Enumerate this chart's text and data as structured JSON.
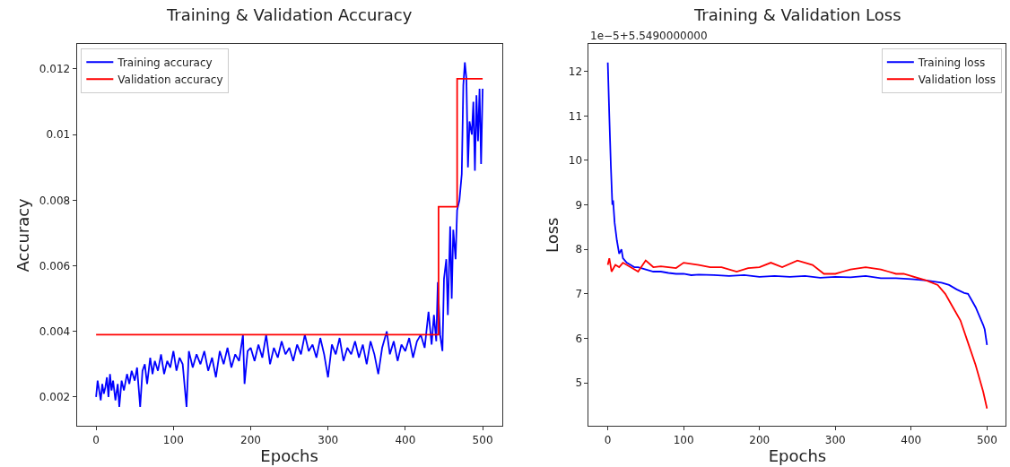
{
  "chart_data": [
    {
      "type": "line",
      "title": "Training & Validation Accuracy",
      "xlabel": "Epochs",
      "ylabel": "Accuracy",
      "xlim": [
        -25,
        525
      ],
      "xticks": [
        0,
        100,
        200,
        300,
        400,
        500
      ],
      "ylim": [
        0.00112,
        0.01275
      ],
      "yticks": [
        0.002,
        0.004,
        0.006,
        0.008,
        0.01,
        0.012
      ],
      "legend": "top left",
      "series": [
        {
          "name": "Training accuracy",
          "color": "#0000ff",
          "x": [
            0,
            2,
            4,
            6,
            8,
            10,
            12,
            14,
            16,
            18,
            20,
            22,
            25,
            28,
            30,
            33,
            36,
            40,
            43,
            46,
            50,
            53,
            57,
            60,
            63,
            66,
            70,
            73,
            76,
            80,
            84,
            88,
            92,
            96,
            100,
            104,
            108,
            112,
            117,
            120,
            125,
            130,
            135,
            140,
            145,
            150,
            155,
            160,
            165,
            170,
            175,
            180,
            185,
            190,
            192,
            196,
            200,
            205,
            210,
            215,
            220,
            225,
            230,
            235,
            240,
            245,
            250,
            255,
            260,
            265,
            270,
            275,
            280,
            285,
            290,
            295,
            300,
            305,
            310,
            315,
            320,
            325,
            330,
            335,
            340,
            345,
            350,
            355,
            360,
            365,
            370,
            376,
            380,
            385,
            390,
            395,
            400,
            405,
            410,
            415,
            420,
            425,
            430,
            434,
            437,
            440,
            442,
            445,
            448,
            450,
            453,
            455,
            458,
            460,
            462,
            465,
            467,
            470,
            473,
            475,
            477,
            479,
            481,
            483,
            486,
            488,
            490,
            492,
            494,
            496,
            498,
            500
          ],
          "values": [
            0.002,
            0.0025,
            0.0022,
            0.0019,
            0.0024,
            0.0021,
            0.0023,
            0.0026,
            0.002,
            0.0027,
            0.0022,
            0.0025,
            0.0019,
            0.0024,
            0.0017,
            0.0025,
            0.0022,
            0.0027,
            0.0024,
            0.0028,
            0.0025,
            0.0029,
            0.0017,
            0.0028,
            0.003,
            0.0024,
            0.0032,
            0.0027,
            0.0031,
            0.0028,
            0.0033,
            0.0027,
            0.0031,
            0.0029,
            0.0034,
            0.0028,
            0.0032,
            0.003,
            0.0017,
            0.0034,
            0.0029,
            0.0033,
            0.003,
            0.0034,
            0.0028,
            0.0032,
            0.0026,
            0.0034,
            0.003,
            0.0035,
            0.0029,
            0.0033,
            0.0031,
            0.0039,
            0.0024,
            0.0034,
            0.0035,
            0.0031,
            0.0036,
            0.0032,
            0.0039,
            0.003,
            0.0035,
            0.0032,
            0.0037,
            0.0033,
            0.0035,
            0.0031,
            0.0036,
            0.0033,
            0.0039,
            0.0034,
            0.0036,
            0.0032,
            0.0038,
            0.0033,
            0.0026,
            0.0036,
            0.0033,
            0.0038,
            0.0031,
            0.0035,
            0.0033,
            0.0037,
            0.0032,
            0.0036,
            0.003,
            0.0037,
            0.0033,
            0.0027,
            0.0035,
            0.004,
            0.0033,
            0.0037,
            0.0031,
            0.0036,
            0.0034,
            0.0038,
            0.0032,
            0.0037,
            0.0039,
            0.0035,
            0.0046,
            0.0036,
            0.0045,
            0.0037,
            0.0055,
            0.0039,
            0.0034,
            0.0056,
            0.0062,
            0.0045,
            0.0072,
            0.005,
            0.0071,
            0.0062,
            0.0077,
            0.008,
            0.0088,
            0.0115,
            0.0122,
            0.0117,
            0.009,
            0.0104,
            0.01,
            0.011,
            0.0089,
            0.0112,
            0.0098,
            0.0114,
            0.0091,
            0.0114
          ]
        },
        {
          "name": "Validation accuracy",
          "color": "#ff0000",
          "type": "step",
          "x": [
            0,
            443,
            467,
            500
          ],
          "values": [
            0.0039,
            0.0078,
            0.0117,
            0.0117
          ]
        }
      ]
    },
    {
      "type": "line",
      "title": "Training & Validation Loss",
      "xlabel": "Epochs",
      "ylabel": "Loss",
      "xlim": [
        -25,
        525
      ],
      "xticks": [
        0,
        100,
        200,
        300,
        400,
        500
      ],
      "ylim": [
        4.03,
        12.61
      ],
      "yticks": [
        5,
        6,
        7,
        8,
        9,
        10,
        11,
        12
      ],
      "legend": "top right",
      "annotations": [
        "1e−5+5.5490000000"
      ],
      "series": [
        {
          "name": "Training loss",
          "color": "#0000ff",
          "x": [
            0,
            2,
            4,
            6,
            7,
            9,
            12,
            15,
            18,
            20,
            25,
            30,
            35,
            40,
            50,
            60,
            70,
            80,
            90,
            100,
            110,
            120,
            140,
            160,
            180,
            200,
            220,
            240,
            260,
            280,
            300,
            320,
            340,
            360,
            380,
            400,
            420,
            440,
            450,
            460,
            470,
            475,
            480,
            485,
            490,
            495,
            497,
            500
          ],
          "values": [
            12.2,
            11.0,
            9.9,
            9.0,
            9.1,
            8.6,
            8.2,
            7.9,
            8.0,
            7.8,
            7.7,
            7.65,
            7.6,
            7.6,
            7.55,
            7.5,
            7.5,
            7.47,
            7.45,
            7.45,
            7.42,
            7.43,
            7.42,
            7.4,
            7.42,
            7.38,
            7.4,
            7.38,
            7.4,
            7.36,
            7.38,
            7.37,
            7.4,
            7.35,
            7.35,
            7.33,
            7.3,
            7.25,
            7.2,
            7.1,
            7.02,
            7.0,
            6.85,
            6.7,
            6.5,
            6.3,
            6.2,
            5.85
          ]
        },
        {
          "name": "Validation loss",
          "color": "#ff0000",
          "x": [
            0,
            2,
            5,
            10,
            15,
            20,
            30,
            40,
            50,
            60,
            70,
            80,
            90,
            100,
            120,
            135,
            150,
            170,
            185,
            200,
            215,
            230,
            250,
            260,
            270,
            285,
            300,
            310,
            320,
            340,
            360,
            370,
            380,
            390,
            400,
            420,
            435,
            445,
            455,
            465,
            475,
            485,
            495,
            500
          ],
          "values": [
            7.65,
            7.8,
            7.5,
            7.65,
            7.6,
            7.7,
            7.6,
            7.5,
            7.75,
            7.6,
            7.62,
            7.6,
            7.58,
            7.7,
            7.65,
            7.6,
            7.6,
            7.5,
            7.58,
            7.6,
            7.7,
            7.6,
            7.75,
            7.7,
            7.65,
            7.45,
            7.45,
            7.5,
            7.55,
            7.6,
            7.55,
            7.5,
            7.45,
            7.45,
            7.4,
            7.3,
            7.2,
            7.0,
            6.7,
            6.4,
            5.9,
            5.4,
            4.8,
            4.42
          ]
        }
      ]
    }
  ]
}
